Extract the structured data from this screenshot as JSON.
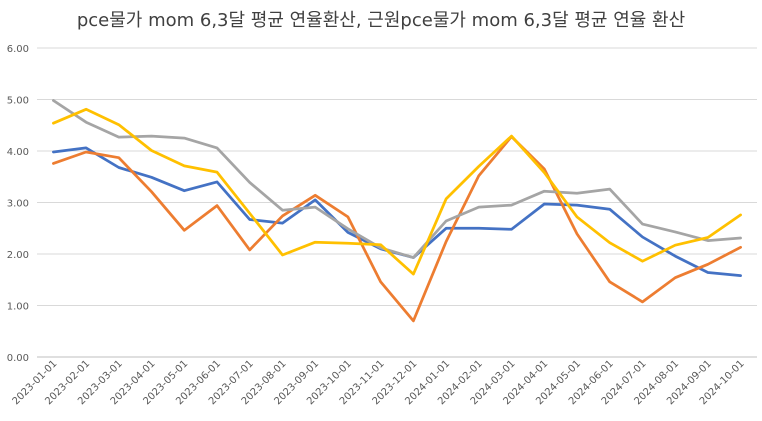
{
  "chart_data": {
    "type": "line",
    "title": "pce물가 mom 6,3달 평균 연율환산, 근원pce물가 mom 6,3달 평균 연율 환산",
    "xlabel": "",
    "ylabel": "",
    "ylim": [
      0,
      6
    ],
    "yticks": [
      "0.00",
      "1.00",
      "2.00",
      "3.00",
      "4.00",
      "5.00",
      "6.00"
    ],
    "grid": true,
    "legend": "none",
    "categories": [
      "2023-01-01",
      "2023-02-01",
      "2023-03-01",
      "2023-04-01",
      "2023-05-01",
      "2023-06-01",
      "2023-07-01",
      "2023-08-01",
      "2023-09-01",
      "2023-10-01",
      "2023-11-01",
      "2023-12-01",
      "2024-01-01",
      "2024-02-01",
      "2024-03-01",
      "2024-04-01",
      "2024-05-01",
      "2024-06-01",
      "2024-07-01",
      "2024-08-01",
      "2024-09-01",
      "2024-10-01"
    ],
    "series": [
      {
        "name": "series-blue",
        "color": "#4472C4",
        "values": [
          3.98,
          4.06,
          3.68,
          3.49,
          3.23,
          3.4,
          2.67,
          2.6,
          3.05,
          2.42,
          2.1,
          1.93,
          2.5,
          2.5,
          2.48,
          2.97,
          2.95,
          2.87,
          2.33,
          1.96,
          1.64,
          1.58
        ]
      },
      {
        "name": "series-orange",
        "color": "#ED7D31",
        "values": [
          3.76,
          3.98,
          3.87,
          3.21,
          2.46,
          2.94,
          2.08,
          2.74,
          3.14,
          2.72,
          1.46,
          0.7,
          2.24,
          3.52,
          4.28,
          3.65,
          2.39,
          1.46,
          1.07,
          1.54,
          1.8,
          2.13
        ]
      },
      {
        "name": "series-gray",
        "color": "#A5A5A5",
        "values": [
          4.98,
          4.56,
          4.27,
          4.29,
          4.25,
          4.06,
          3.39,
          2.85,
          2.91,
          2.49,
          2.12,
          1.93,
          2.64,
          2.91,
          2.95,
          3.22,
          3.18,
          3.26,
          2.58,
          2.43,
          2.26,
          2.31
        ]
      },
      {
        "name": "series-yellow",
        "color": "#FFC000",
        "values": [
          4.54,
          4.81,
          4.51,
          4.01,
          3.71,
          3.59,
          2.79,
          1.98,
          2.23,
          2.21,
          2.18,
          1.61,
          3.07,
          3.7,
          4.29,
          3.58,
          2.72,
          2.22,
          1.86,
          2.17,
          2.32,
          2.76
        ]
      }
    ]
  }
}
